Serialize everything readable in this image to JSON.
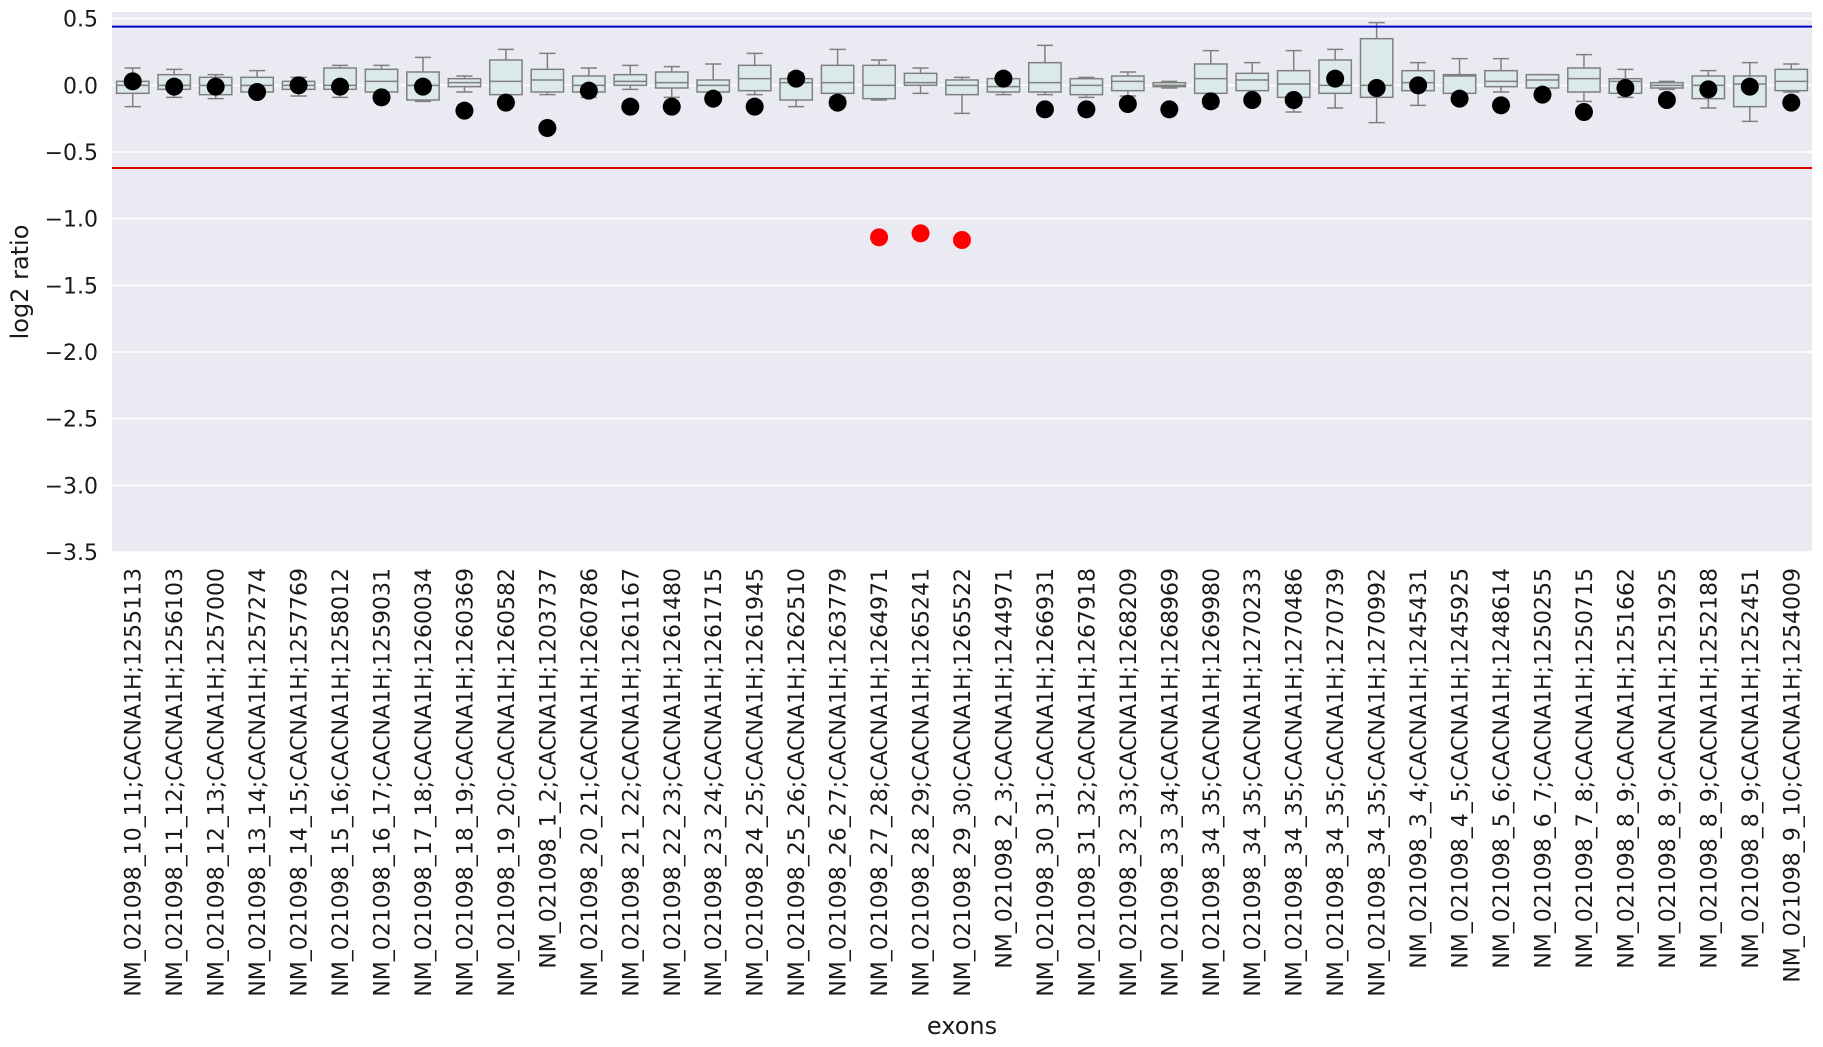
{
  "chart_data": {
    "type": "box",
    "xlabel": "exons",
    "ylabel": "log2 ratio",
    "ylim": [
      -3.5,
      0.55
    ],
    "yticks": [
      0.5,
      0.0,
      -0.5,
      -1.0,
      -1.5,
      -2.0,
      -2.5,
      -3.0,
      -3.5
    ],
    "ytick_labels": [
      "0.5",
      "0.0",
      "−0.5",
      "−1.0",
      "−1.5",
      "−2.0",
      "−2.5",
      "−3.0",
      "−3.5"
    ],
    "grid": true,
    "background": "#eaeaf2",
    "box_fill": "#dbe9ea",
    "box_edge": "#808080",
    "thresholds": [
      {
        "y": 0.44,
        "color": "#0000cc"
      },
      {
        "y": -0.62,
        "color": "#e00000"
      }
    ],
    "categories": [
      "NM_021098_10_11;CACNA1H;1255113",
      "NM_021098_11_12;CACNA1H;1256103",
      "NM_021098_12_13;CACNA1H;1257000",
      "NM_021098_13_14;CACNA1H;1257274",
      "NM_021098_14_15;CACNA1H;1257769",
      "NM_021098_15_16;CACNA1H;1258012",
      "NM_021098_16_17;CACNA1H;1259031",
      "NM_021098_17_18;CACNA1H;1260034",
      "NM_021098_18_19;CACNA1H;1260369",
      "NM_021098_19_20;CACNA1H;1260582",
      "NM_021098_1_2;CACNA1H;1203737",
      "NM_021098_20_21;CACNA1H;1260786",
      "NM_021098_21_22;CACNA1H;1261167",
      "NM_021098_22_23;CACNA1H;1261480",
      "NM_021098_23_24;CACNA1H;1261715",
      "NM_021098_24_25;CACNA1H;1261945",
      "NM_021098_25_26;CACNA1H;1262510",
      "NM_021098_26_27;CACNA1H;1263779",
      "NM_021098_27_28;CACNA1H;1264971",
      "NM_021098_28_29;CACNA1H;1265241",
      "NM_021098_29_30;CACNA1H;1265522",
      "NM_021098_2_3;CACNA1H;1244971",
      "NM_021098_30_31;CACNA1H;1266931",
      "NM_021098_31_32;CACNA1H;1267918",
      "NM_021098_32_33;CACNA1H;1268209",
      "NM_021098_33_34;CACNA1H;1268969",
      "NM_021098_34_35;CACNA1H;1269980",
      "NM_021098_34_35;CACNA1H;1270233",
      "NM_021098_34_35;CACNA1H;1270486",
      "NM_021098_34_35;CACNA1H;1270739",
      "NM_021098_34_35;CACNA1H;1270992",
      "NM_021098_3_4;CACNA1H;1245431",
      "NM_021098_4_5;CACNA1H;1245925",
      "NM_021098_5_6;CACNA1H;1248614",
      "NM_021098_6_7;CACNA1H;1250255",
      "NM_021098_7_8;CACNA1H;1250715",
      "NM_021098_8_9;CACNA1H;1251662",
      "NM_021098_8_9;CACNA1H;1251925",
      "NM_021098_8_9;CACNA1H;1252188",
      "NM_021098_8_9;CACNA1H;1252451",
      "NM_021098_9_10;CACNA1H;1254009"
    ],
    "boxes": [
      {
        "wlo": -0.16,
        "q1": -0.06,
        "med": 0.0,
        "q3": 0.03,
        "whi": 0.13
      },
      {
        "wlo": -0.09,
        "q1": -0.03,
        "med": 0.0,
        "q3": 0.08,
        "whi": 0.12
      },
      {
        "wlo": -0.1,
        "q1": -0.07,
        "med": 0.0,
        "q3": 0.06,
        "whi": 0.08
      },
      {
        "wlo": -0.06,
        "q1": -0.05,
        "med": 0.0,
        "q3": 0.06,
        "whi": 0.11
      },
      {
        "wlo": -0.08,
        "q1": -0.03,
        "med": 0.0,
        "q3": 0.03,
        "whi": 0.06
      },
      {
        "wlo": -0.09,
        "q1": -0.03,
        "med": 0.0,
        "q3": 0.13,
        "whi": 0.15
      },
      {
        "wlo": -0.07,
        "q1": -0.05,
        "med": 0.03,
        "q3": 0.12,
        "whi": 0.15
      },
      {
        "wlo": -0.12,
        "q1": -0.11,
        "med": 0.0,
        "q3": 0.1,
        "whi": 0.21
      },
      {
        "wlo": -0.05,
        "q1": -0.01,
        "med": 0.02,
        "q3": 0.05,
        "whi": 0.07
      },
      {
        "wlo": -0.07,
        "q1": -0.07,
        "med": 0.03,
        "q3": 0.19,
        "whi": 0.27
      },
      {
        "wlo": -0.07,
        "q1": -0.05,
        "med": 0.04,
        "q3": 0.12,
        "whi": 0.24
      },
      {
        "wlo": -0.09,
        "q1": -0.05,
        "med": 0.0,
        "q3": 0.07,
        "whi": 0.13
      },
      {
        "wlo": -0.03,
        "q1": 0.0,
        "med": 0.03,
        "q3": 0.08,
        "whi": 0.15
      },
      {
        "wlo": -0.09,
        "q1": -0.02,
        "med": 0.02,
        "q3": 0.1,
        "whi": 0.14
      },
      {
        "wlo": -0.09,
        "q1": -0.05,
        "med": 0.0,
        "q3": 0.04,
        "whi": 0.16
      },
      {
        "wlo": -0.07,
        "q1": -0.04,
        "med": 0.05,
        "q3": 0.15,
        "whi": 0.24
      },
      {
        "wlo": -0.16,
        "q1": -0.11,
        "med": 0.02,
        "q3": 0.05,
        "whi": 0.09
      },
      {
        "wlo": -0.09,
        "q1": -0.06,
        "med": 0.02,
        "q3": 0.15,
        "whi": 0.27
      },
      {
        "wlo": -0.11,
        "q1": -0.1,
        "med": 0.0,
        "q3": 0.15,
        "whi": 0.19
      },
      {
        "wlo": -0.06,
        "q1": 0.0,
        "med": 0.02,
        "q3": 0.09,
        "whi": 0.13
      },
      {
        "wlo": -0.21,
        "q1": -0.07,
        "med": 0.0,
        "q3": 0.04,
        "whi": 0.06
      },
      {
        "wlo": -0.07,
        "q1": -0.05,
        "med": -0.01,
        "q3": 0.05,
        "whi": 0.08
      },
      {
        "wlo": -0.07,
        "q1": -0.05,
        "med": 0.02,
        "q3": 0.17,
        "whi": 0.3
      },
      {
        "wlo": -0.09,
        "q1": -0.07,
        "med": 0.0,
        "q3": 0.05,
        "whi": 0.06
      },
      {
        "wlo": -0.08,
        "q1": -0.04,
        "med": 0.03,
        "q3": 0.07,
        "whi": 0.1
      },
      {
        "wlo": -0.02,
        "q1": -0.01,
        "med": 0.0,
        "q3": 0.02,
        "whi": 0.03
      },
      {
        "wlo": -0.16,
        "q1": -0.06,
        "med": 0.05,
        "q3": 0.16,
        "whi": 0.26
      },
      {
        "wlo": -0.1,
        "q1": -0.04,
        "med": 0.04,
        "q3": 0.09,
        "whi": 0.17
      },
      {
        "wlo": -0.2,
        "q1": -0.09,
        "med": 0.01,
        "q3": 0.11,
        "whi": 0.26
      },
      {
        "wlo": -0.17,
        "q1": -0.06,
        "med": 0.0,
        "q3": 0.19,
        "whi": 0.27
      },
      {
        "wlo": -0.28,
        "q1": -0.09,
        "med": 0.0,
        "q3": 0.35,
        "whi": 0.47
      },
      {
        "wlo": -0.15,
        "q1": -0.04,
        "med": 0.02,
        "q3": 0.11,
        "whi": 0.17
      },
      {
        "wlo": -0.07,
        "q1": -0.06,
        "med": 0.07,
        "q3": 0.08,
        "whi": 0.2
      },
      {
        "wlo": -0.05,
        "q1": -0.01,
        "med": 0.03,
        "q3": 0.11,
        "whi": 0.2
      },
      {
        "wlo": -0.04,
        "q1": -0.02,
        "med": 0.04,
        "q3": 0.08,
        "whi": 0.08
      },
      {
        "wlo": -0.12,
        "q1": -0.05,
        "med": 0.05,
        "q3": 0.13,
        "whi": 0.23
      },
      {
        "wlo": -0.09,
        "q1": -0.06,
        "med": 0.03,
        "q3": 0.05,
        "whi": 0.12
      },
      {
        "wlo": -0.03,
        "q1": -0.02,
        "med": 0.0,
        "q3": 0.02,
        "whi": 0.03
      },
      {
        "wlo": -0.17,
        "q1": -0.1,
        "med": 0.0,
        "q3": 0.07,
        "whi": 0.11
      },
      {
        "wlo": -0.27,
        "q1": -0.16,
        "med": 0.01,
        "q3": 0.07,
        "whi": 0.17
      },
      {
        "wlo": -0.05,
        "q1": -0.04,
        "med": 0.03,
        "q3": 0.12,
        "whi": 0.16
      }
    ],
    "points": [
      {
        "y": 0.03,
        "color": "#000000"
      },
      {
        "y": -0.01,
        "color": "#000000"
      },
      {
        "y": -0.01,
        "color": "#000000"
      },
      {
        "y": -0.05,
        "color": "#000000"
      },
      {
        "y": 0.0,
        "color": "#000000"
      },
      {
        "y": -0.01,
        "color": "#000000"
      },
      {
        "y": -0.09,
        "color": "#000000"
      },
      {
        "y": -0.01,
        "color": "#000000"
      },
      {
        "y": -0.19,
        "color": "#000000"
      },
      {
        "y": -0.13,
        "color": "#000000"
      },
      {
        "y": -0.32,
        "color": "#000000"
      },
      {
        "y": -0.04,
        "color": "#000000"
      },
      {
        "y": -0.16,
        "color": "#000000"
      },
      {
        "y": -0.16,
        "color": "#000000"
      },
      {
        "y": -0.1,
        "color": "#000000"
      },
      {
        "y": -0.16,
        "color": "#000000"
      },
      {
        "y": 0.05,
        "color": "#000000"
      },
      {
        "y": -0.13,
        "color": "#000000"
      },
      {
        "y": -1.14,
        "color": "#ff0000"
      },
      {
        "y": -1.11,
        "color": "#ff0000"
      },
      {
        "y": -1.16,
        "color": "#ff0000"
      },
      {
        "y": 0.05,
        "color": "#000000"
      },
      {
        "y": -0.18,
        "color": "#000000"
      },
      {
        "y": -0.18,
        "color": "#000000"
      },
      {
        "y": -0.14,
        "color": "#000000"
      },
      {
        "y": -0.18,
        "color": "#000000"
      },
      {
        "y": -0.12,
        "color": "#000000"
      },
      {
        "y": -0.11,
        "color": "#000000"
      },
      {
        "y": -0.11,
        "color": "#000000"
      },
      {
        "y": 0.05,
        "color": "#000000"
      },
      {
        "y": -0.02,
        "color": "#000000"
      },
      {
        "y": 0.0,
        "color": "#000000"
      },
      {
        "y": -0.1,
        "color": "#000000"
      },
      {
        "y": -0.15,
        "color": "#000000"
      },
      {
        "y": -0.07,
        "color": "#000000"
      },
      {
        "y": -0.2,
        "color": "#000000"
      },
      {
        "y": -0.02,
        "color": "#000000"
      },
      {
        "y": -0.11,
        "color": "#000000"
      },
      {
        "y": -0.03,
        "color": "#000000"
      },
      {
        "y": -0.01,
        "color": "#000000"
      },
      {
        "y": -0.13,
        "color": "#000000"
      }
    ]
  }
}
